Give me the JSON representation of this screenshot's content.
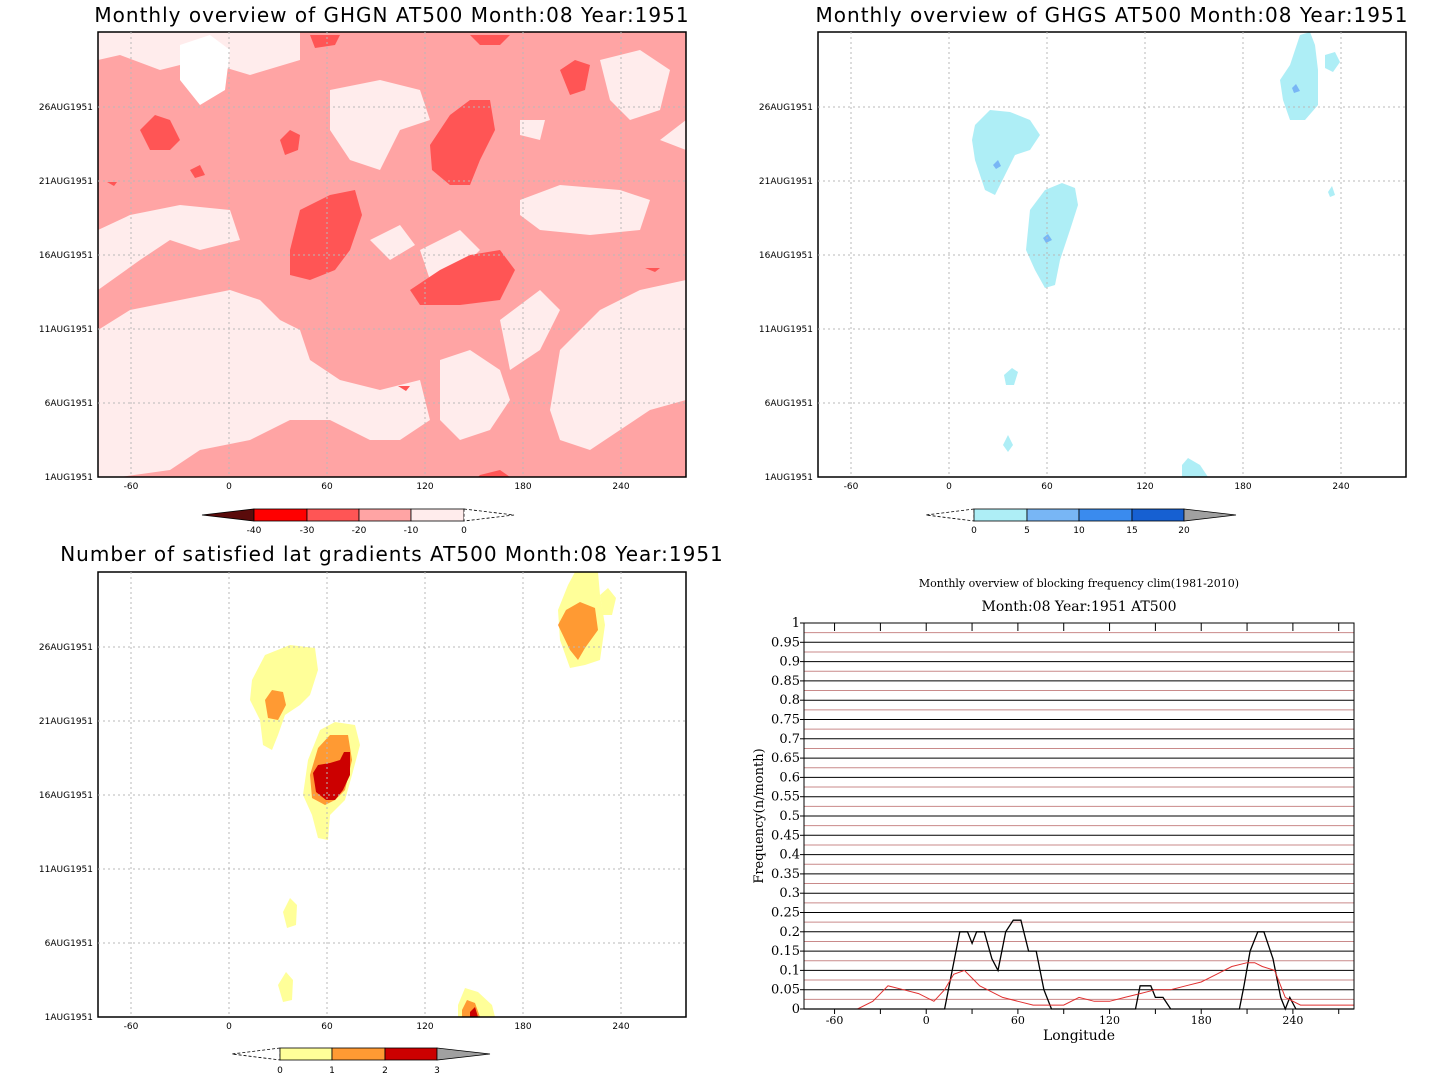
{
  "panels": [
    {
      "title": "Monthly overview of GHGN AT500 Month:08 Year:1951",
      "xticks": [
        "-60",
        "0",
        "60",
        "120",
        "180",
        "240"
      ],
      "yticks": [
        "1AUG1951",
        "6AUG1951",
        "11AUG1951",
        "16AUG1951",
        "21AUG1951",
        "26AUG1951"
      ],
      "colorbar": {
        "labels": [
          "-40",
          "-30",
          "-20",
          "-10",
          "0"
        ],
        "colors": [
          "#5a0b0b",
          "#ff0000",
          "#ff5555",
          "#ffa4a4",
          "#ffecec"
        ]
      }
    },
    {
      "title": "Monthly overview of GHGS AT500 Month:08 Year:1951",
      "xticks": [
        "-60",
        "0",
        "60",
        "120",
        "180",
        "240"
      ],
      "yticks": [
        "1AUG1951",
        "6AUG1951",
        "11AUG1951",
        "16AUG1951",
        "21AUG1951",
        "26AUG1951"
      ],
      "colorbar": {
        "labels": [
          "0",
          "5",
          "10",
          "15",
          "20"
        ],
        "colors": [
          "#aeeef6",
          "#78b6f5",
          "#3a8bee",
          "#1660d2",
          "#a0a0a0"
        ]
      }
    },
    {
      "title": "Number of satisfied lat gradients AT500 Month:08 Year:1951",
      "xticks": [
        "-60",
        "0",
        "60",
        "120",
        "180",
        "240"
      ],
      "yticks": [
        "1AUG1951",
        "6AUG1951",
        "11AUG1951",
        "16AUG1951",
        "21AUG1951",
        "26AUG1951"
      ],
      "colorbar": {
        "labels": [
          "0",
          "1",
          "2",
          "3"
        ],
        "colors": [
          "#ffff99",
          "#ff9a33",
          "#cc0000",
          "#a0a0a0"
        ]
      }
    }
  ],
  "chart_data": {
    "type": "line",
    "title": "Monthly overview of blocking frequency clim(1981-2010)",
    "subtitle": "Month:08 Year:1951  AT500",
    "xlabel": "Longitude",
    "ylabel": "Frequency(n/month)",
    "xlim": [
      -80,
      280
    ],
    "ylim": [
      0,
      1
    ],
    "xticks": [
      "-60",
      "0",
      "60",
      "120",
      "180",
      "240"
    ],
    "yticks": [
      "0",
      "0.05",
      "0.1",
      "0.15",
      "0.2",
      "0.25",
      "0.3",
      "0.35",
      "0.4",
      "0.45",
      "0.5",
      "0.55",
      "0.6",
      "0.65",
      "0.7",
      "0.75",
      "0.8",
      "0.85",
      "0.9",
      "0.95",
      "1"
    ],
    "series": [
      {
        "color": "#000000",
        "x": [
          -80,
          12,
          22,
          27,
          30,
          33,
          38,
          43,
          47,
          52,
          57,
          62,
          67,
          72,
          77,
          82,
          137,
          140,
          147,
          150,
          155,
          160,
          205,
          208,
          212,
          217,
          221,
          227,
          232,
          235,
          238,
          242,
          280
        ],
        "y": [
          0,
          0,
          0.2,
          0.2,
          0.17,
          0.2,
          0.2,
          0.13,
          0.1,
          0.2,
          0.23,
          0.23,
          0.15,
          0.15,
          0.05,
          0,
          0,
          0.06,
          0.06,
          0.03,
          0.03,
          0,
          0,
          0.06,
          0.15,
          0.2,
          0.2,
          0.13,
          0.03,
          0,
          0.03,
          0,
          0
        ]
      },
      {
        "color": "#e03030",
        "x": [
          -80,
          -45,
          -35,
          -25,
          -15,
          -5,
          5,
          12,
          18,
          25,
          30,
          35,
          40,
          50,
          60,
          70,
          80,
          90,
          100,
          110,
          120,
          130,
          140,
          150,
          160,
          170,
          180,
          190,
          200,
          210,
          215,
          220,
          228,
          235,
          245,
          260,
          280
        ],
        "y": [
          0,
          0,
          0.02,
          0.06,
          0.05,
          0.04,
          0.02,
          0.05,
          0.09,
          0.1,
          0.08,
          0.06,
          0.05,
          0.03,
          0.02,
          0.01,
          0.01,
          0.01,
          0.03,
          0.02,
          0.02,
          0.03,
          0.04,
          0.05,
          0.05,
          0.06,
          0.07,
          0.09,
          0.11,
          0.12,
          0.12,
          0.11,
          0.1,
          0.03,
          0.01,
          0.01,
          0.01
        ]
      }
    ]
  }
}
